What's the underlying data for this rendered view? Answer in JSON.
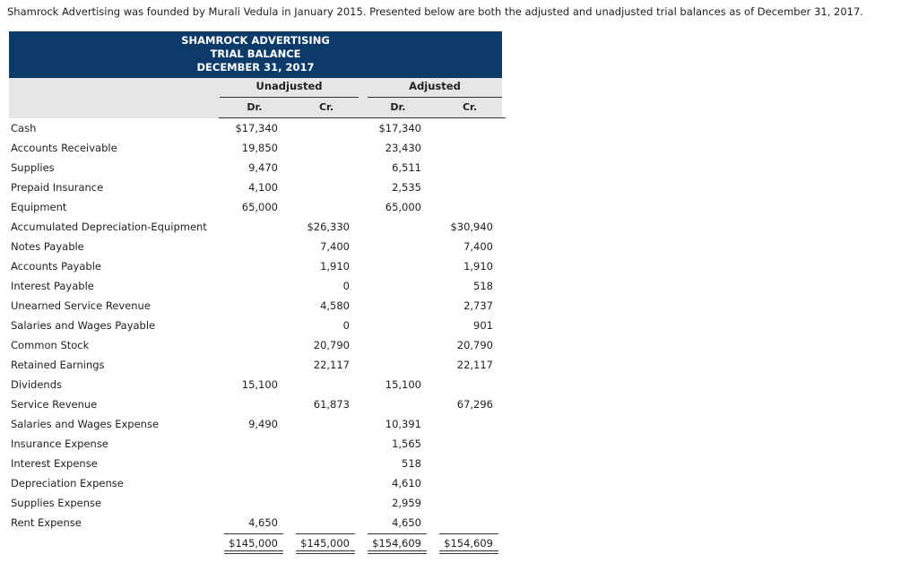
{
  "intro": "Shamrock Advertising was founded by Murali Vedula in January 2015. Presented below are both the adjusted and unadjusted trial balances as of December 31, 2017.",
  "header": {
    "lines": [
      "SHAMROCK ADVERTISING",
      "TRIAL BALANCE",
      "DECEMBER 31, 2017"
    ]
  },
  "table": {
    "groups": [
      "Unadjusted",
      "Adjusted"
    ],
    "columns": [
      "Dr.",
      "Cr.",
      "Dr.",
      "Cr."
    ],
    "rows": [
      [
        "Cash",
        "$17,340",
        null,
        "$17,340",
        null
      ],
      [
        "Accounts Receivable",
        "19,850",
        null,
        "23,430",
        null
      ],
      [
        "Supplies",
        "9,470",
        null,
        "6,511",
        null
      ],
      [
        "Prepaid Insurance",
        "4,100",
        null,
        "2,535",
        null
      ],
      [
        "Equipment",
        "65,000",
        null,
        "65,000",
        null
      ],
      [
        "Accumulated Depreciation-Equipment",
        null,
        "$26,330",
        null,
        "$30,940"
      ],
      [
        "Notes Payable",
        null,
        "7,400",
        null,
        "7,400"
      ],
      [
        "Accounts Payable",
        null,
        "1,910",
        null,
        "1,910"
      ],
      [
        "Interest Payable",
        null,
        "0",
        null,
        "518"
      ],
      [
        "Unearned Service Revenue",
        null,
        "4,580",
        null,
        "2,737"
      ],
      [
        "Salaries and Wages Payable",
        null,
        "0",
        null,
        "901"
      ],
      [
        "Common Stock",
        null,
        "20,790",
        null,
        "20,790"
      ],
      [
        "Retained Earnings",
        null,
        "22,117",
        null,
        "22,117"
      ],
      [
        "Dividends",
        "15,100",
        null,
        "15,100",
        null
      ],
      [
        "Service Revenue",
        null,
        "61,873",
        null,
        "67,296"
      ],
      [
        "Salaries and Wages Expense",
        "9,490",
        null,
        "10,391",
        null
      ],
      [
        "Insurance Expense",
        null,
        null,
        "1,565",
        null
      ],
      [
        "Interest Expense",
        null,
        null,
        "518",
        null
      ],
      [
        "Depreciation Expense",
        null,
        null,
        "4,610",
        null
      ],
      [
        "Supplies Expense",
        null,
        null,
        "2,959",
        null
      ],
      [
        "Rent Expense",
        "4,650",
        null,
        "4,650",
        null
      ]
    ],
    "totals": [
      "$145,000",
      "$145,000",
      "$154,609",
      "$154,609"
    ]
  }
}
